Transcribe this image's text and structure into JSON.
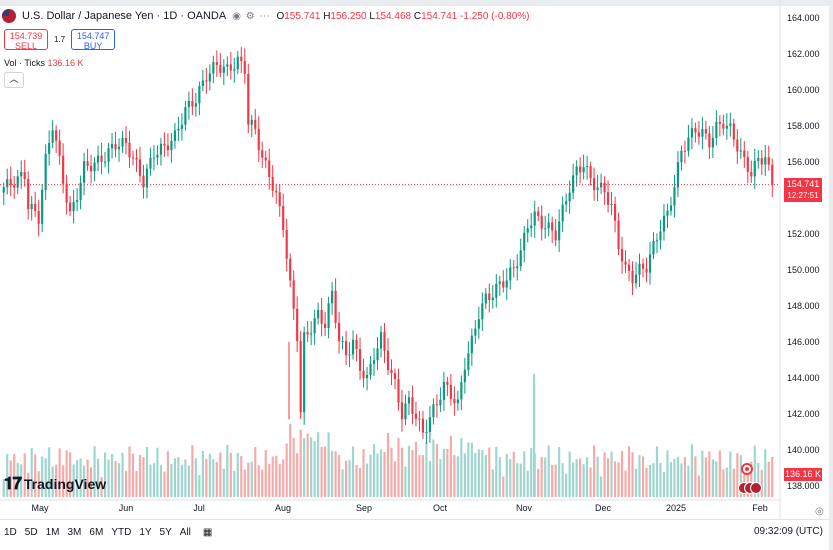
{
  "header": {
    "symbol_title": "U.S. Dollar / Japanese Yen · 1D · OANDA",
    "ohlc": {
      "o_label": "O",
      "o": "155.741",
      "h_label": "H",
      "h": "156.250",
      "l_label": "L",
      "l": "154.468",
      "c_label": "C",
      "c": "154.741",
      "change": "-1.250 (-0.80%)"
    }
  },
  "trade": {
    "sell_price": "154.739",
    "sell_label": "SELL",
    "spread": "1.7",
    "buy_price": "154.747",
    "buy_label": "BUY"
  },
  "volume_legend": {
    "label": "Vol · Ticks",
    "value": "136.16 K"
  },
  "logo": {
    "text": "TradingView"
  },
  "price_tag": {
    "price": "154.741",
    "countdown": "12:27:51"
  },
  "volume_tag": "136.16 K",
  "toolbar": {
    "timeframes": [
      "1D",
      "5D",
      "1M",
      "3M",
      "6M",
      "YTD",
      "1Y",
      "5Y",
      "All"
    ]
  },
  "clock": "09:32:09 (UTC)",
  "colors": {
    "up": "#089981",
    "down": "#f23645",
    "vol_up": "#9dd5cf",
    "vol_down": "#f7a9a7",
    "price_line": "#f23645"
  },
  "chart_data": {
    "type": "candlestick",
    "y_axis": {
      "min": 137,
      "max": 165,
      "ticks": [
        138,
        140,
        142,
        144,
        146,
        148,
        150,
        152,
        154,
        156,
        158,
        160,
        162,
        164
      ]
    },
    "x_axis_labels": [
      "May",
      "Jun",
      "Jul",
      "Aug",
      "Sep",
      "Oct",
      "Nov",
      "Dec",
      "2025",
      "Feb"
    ],
    "last_price": 154.741,
    "close_path": [
      [
        0,
        154.6
      ],
      [
        3,
        154.9
      ],
      [
        6,
        155.3
      ],
      [
        7,
        153.6
      ],
      [
        10,
        152.9
      ],
      [
        12,
        156.1
      ],
      [
        14,
        158.1
      ],
      [
        17,
        155.0
      ],
      [
        19,
        153.0
      ],
      [
        21,
        154.2
      ],
      [
        23,
        155.7
      ],
      [
        26,
        155.9
      ],
      [
        29,
        156.3
      ],
      [
        32,
        157.0
      ],
      [
        35,
        157.0
      ],
      [
        38,
        155.8
      ],
      [
        40,
        154.9
      ],
      [
        43,
        156.5
      ],
      [
        46,
        156.8
      ],
      [
        49,
        157.4
      ],
      [
        52,
        158.9
      ],
      [
        55,
        159.5
      ],
      [
        58,
        160.8
      ],
      [
        61,
        161.4
      ],
      [
        64,
        161.1
      ],
      [
        67,
        161.6
      ],
      [
        69,
        161.2
      ],
      [
        70,
        158.2
      ],
      [
        72,
        157.8
      ],
      [
        74,
        156.2
      ],
      [
        76,
        155.3
      ],
      [
        78,
        154.1
      ],
      [
        80,
        152.5
      ],
      [
        82,
        149.1
      ],
      [
        84,
        146.4
      ],
      [
        85,
        142.1
      ],
      [
        86,
        146.2
      ],
      [
        88,
        146.8
      ],
      [
        90,
        147.5
      ],
      [
        92,
        147.0
      ],
      [
        94,
        148.7
      ],
      [
        96,
        146.1
      ],
      [
        98,
        145.3
      ],
      [
        100,
        146.0
      ],
      [
        102,
        144.6
      ],
      [
        104,
        143.9
      ],
      [
        106,
        145.3
      ],
      [
        108,
        146.2
      ],
      [
        110,
        144.8
      ],
      [
        112,
        143.6
      ],
      [
        114,
        142.0
      ],
      [
        116,
        142.7
      ],
      [
        118,
        141.9
      ],
      [
        120,
        140.9
      ],
      [
        122,
        141.8
      ],
      [
        124,
        142.6
      ],
      [
        126,
        143.6
      ],
      [
        128,
        143.1
      ],
      [
        130,
        142.5
      ],
      [
        132,
        144.8
      ],
      [
        134,
        146.0
      ],
      [
        136,
        147.6
      ],
      [
        138,
        148.4
      ],
      [
        140,
        148.7
      ],
      [
        142,
        149.2
      ],
      [
        144,
        149.5
      ],
      [
        146,
        150.1
      ],
      [
        148,
        151.0
      ],
      [
        150,
        152.5
      ],
      [
        152,
        153.0
      ],
      [
        154,
        152.6
      ],
      [
        156,
        152.3
      ],
      [
        158,
        152.0
      ],
      [
        160,
        153.3
      ],
      [
        162,
        154.6
      ],
      [
        164,
        155.5
      ],
      [
        166,
        155.9
      ],
      [
        168,
        155.0
      ],
      [
        170,
        154.6
      ],
      [
        172,
        154.4
      ],
      [
        174,
        153.5
      ],
      [
        176,
        151.4
      ],
      [
        178,
        150.0
      ],
      [
        180,
        149.6
      ],
      [
        182,
        150.0
      ],
      [
        184,
        150.2
      ],
      [
        186,
        151.3
      ],
      [
        188,
        152.4
      ],
      [
        190,
        153.1
      ],
      [
        192,
        154.7
      ],
      [
        194,
        156.6
      ],
      [
        196,
        157.3
      ],
      [
        198,
        157.8
      ],
      [
        200,
        157.6
      ],
      [
        202,
        157.1
      ],
      [
        204,
        157.9
      ],
      [
        206,
        158.2
      ],
      [
        208,
        157.8
      ],
      [
        210,
        156.9
      ],
      [
        212,
        156.0
      ],
      [
        214,
        155.4
      ],
      [
        216,
        156.1
      ],
      [
        218,
        156.3
      ],
      [
        220,
        154.7
      ]
    ]
  }
}
